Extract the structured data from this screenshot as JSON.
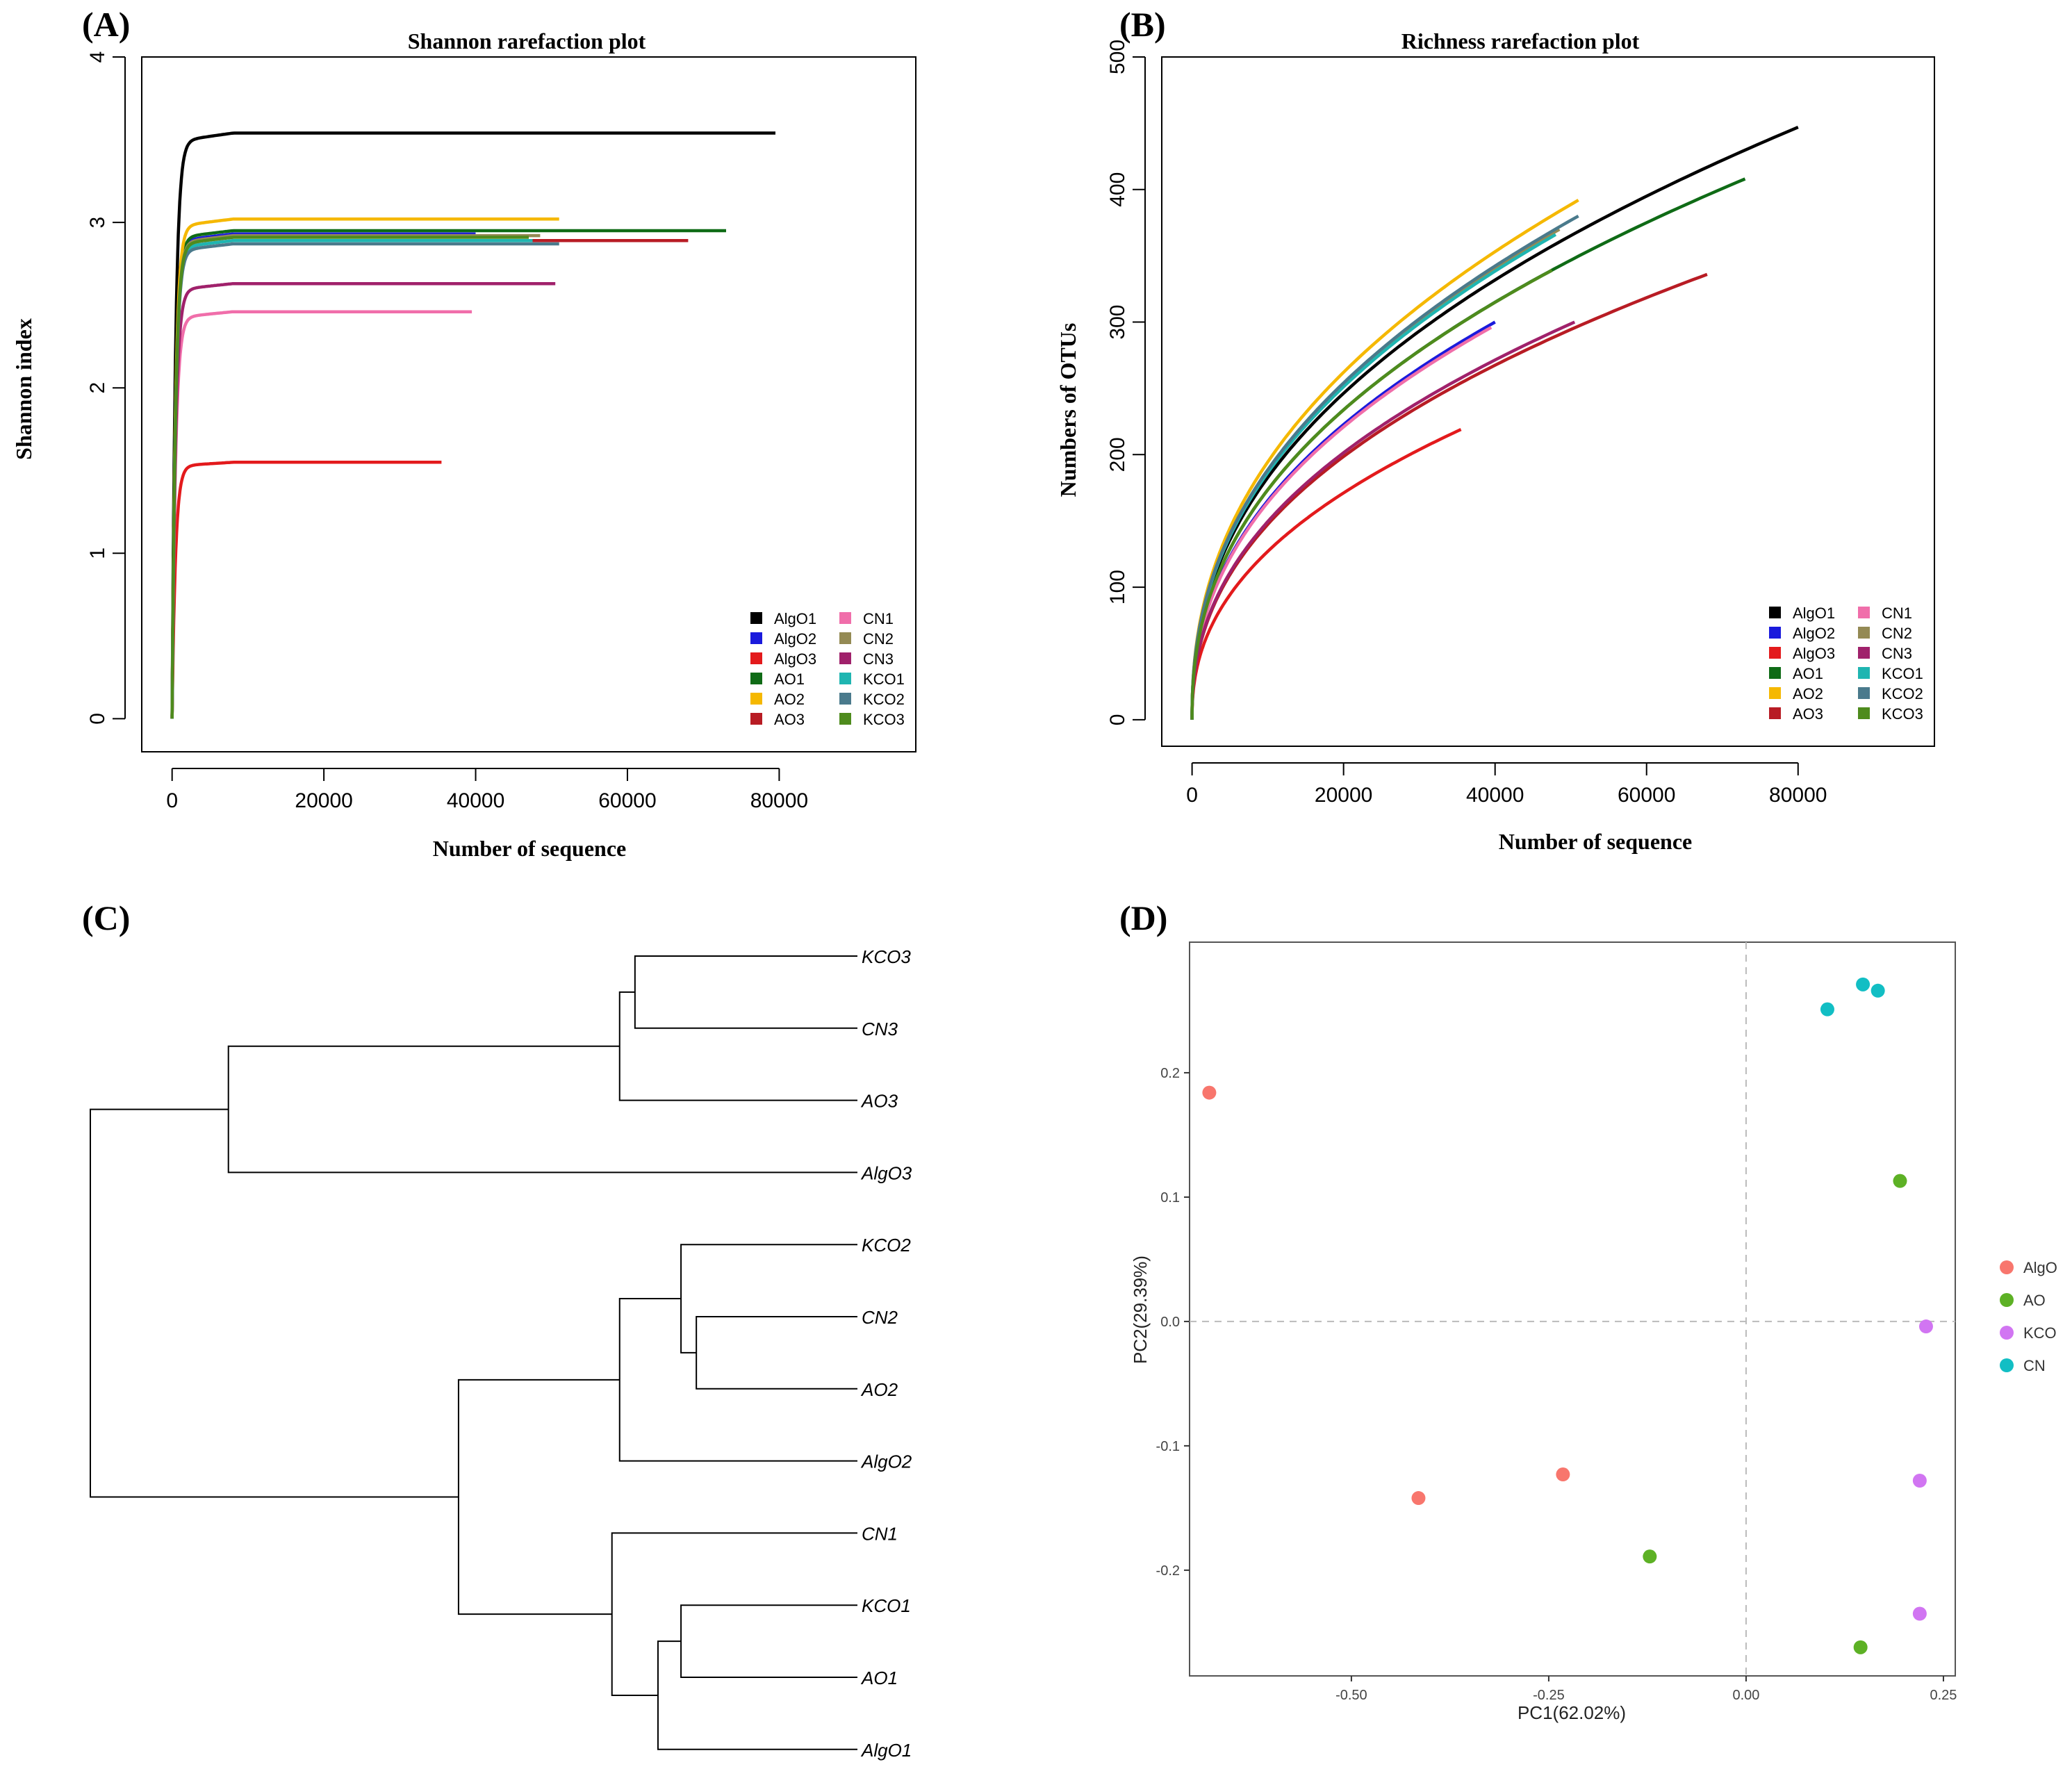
{
  "chart_data": [
    {
      "type": "line",
      "panel_label": "(A)",
      "title": "Shannon rarefaction plot",
      "xlabel": "Number of sequence",
      "ylabel": "Shannon index",
      "xlim": [
        -4000,
        98000
      ],
      "ylim": [
        -0.2,
        4.0
      ],
      "xticks": [
        0,
        20000,
        40000,
        60000,
        80000
      ],
      "xtick_labels": [
        "0",
        "20000",
        "40000",
        "60000",
        "80000"
      ],
      "yticks": [
        0,
        1,
        2,
        3,
        4
      ],
      "ytick_labels": [
        "0",
        "1",
        "2",
        "3",
        "4"
      ],
      "legend_position": "bottom-right",
      "series": [
        {
          "name": "AlgO1",
          "color": "#000000",
          "x_max": 79500,
          "plateau": 3.54
        },
        {
          "name": "AlgO2",
          "color": "#1a1adc",
          "x_max": 40000,
          "plateau": 2.93
        },
        {
          "name": "AlgO3",
          "color": "#e31a1c",
          "x_max": 35500,
          "plateau": 1.55
        },
        {
          "name": "AO1",
          "color": "#0f6b16",
          "x_max": 73000,
          "plateau": 2.95
        },
        {
          "name": "AO2",
          "color": "#f5b800",
          "x_max": 51000,
          "plateau": 3.02
        },
        {
          "name": "AO3",
          "color": "#b81c24",
          "x_max": 68000,
          "plateau": 2.89
        },
        {
          "name": "CN1",
          "color": "#f06eaa",
          "x_max": 39500,
          "plateau": 2.46
        },
        {
          "name": "CN2",
          "color": "#948a54",
          "x_max": 48500,
          "plateau": 2.92
        },
        {
          "name": "CN3",
          "color": "#a0216b",
          "x_max": 50500,
          "plateau": 2.63
        },
        {
          "name": "KCO1",
          "color": "#1fb5b1",
          "x_max": 47500,
          "plateau": 2.89
        },
        {
          "name": "KCO2",
          "color": "#4a7a8c",
          "x_max": 51000,
          "plateau": 2.87
        },
        {
          "name": "KCO3",
          "color": "#4e8b1d",
          "x_max": 47000,
          "plateau": 2.91
        }
      ]
    },
    {
      "type": "line",
      "panel_label": "(B)",
      "title": "Richness rarefaction plot",
      "xlabel": "Number of sequence",
      "ylabel": "Numbers  of  OTUs",
      "xlim": [
        -4000,
        98000
      ],
      "ylim": [
        -20,
        500
      ],
      "xticks": [
        0,
        20000,
        40000,
        60000,
        80000
      ],
      "xtick_labels": [
        "0",
        "20000",
        "40000",
        "60000",
        "80000"
      ],
      "yticks": [
        0,
        100,
        200,
        300,
        400,
        500
      ],
      "ytick_labels": [
        "0",
        "100",
        "200",
        "300",
        "400",
        "500"
      ],
      "legend_position": "bottom-right",
      "series": [
        {
          "name": "AlgO1",
          "color": "#000000",
          "x_max": 80000,
          "end_value": 447
        },
        {
          "name": "AlgO2",
          "color": "#1a1adc",
          "x_max": 40000,
          "end_value": 300
        },
        {
          "name": "AlgO3",
          "color": "#e31a1c",
          "x_max": 35500,
          "end_value": 219
        },
        {
          "name": "AO1",
          "color": "#0f6b16",
          "x_max": 73000,
          "end_value": 408
        },
        {
          "name": "AO2",
          "color": "#f5b800",
          "x_max": 51000,
          "end_value": 392
        },
        {
          "name": "AO3",
          "color": "#b81c24",
          "x_max": 68000,
          "end_value": 336
        },
        {
          "name": "CN1",
          "color": "#f06eaa",
          "x_max": 39500,
          "end_value": 296
        },
        {
          "name": "CN2",
          "color": "#948a54",
          "x_max": 48500,
          "end_value": 370
        },
        {
          "name": "CN3",
          "color": "#a0216b",
          "x_max": 50500,
          "end_value": 300
        },
        {
          "name": "KCO1",
          "color": "#1fb5b1",
          "x_max": 48000,
          "end_value": 366
        },
        {
          "name": "KCO2",
          "color": "#4a7a8c",
          "x_max": 51000,
          "end_value": 380
        },
        {
          "name": "KCO3",
          "color": "#4e8b1d",
          "x_max": 47500,
          "end_value": 339
        }
      ]
    },
    {
      "type": "dendrogram",
      "panel_label": "(C)",
      "leaves": [
        "KCO3",
        "CN3",
        "AO3",
        "AlgO3",
        "KCO2",
        "CN2",
        "AO2",
        "AlgO2",
        "CN1",
        "KCO1",
        "AO1",
        "AlgO1"
      ],
      "merge_order_note": "heights in arbitrary distance units (root = 1.0)",
      "merges": [
        {
          "id": "m1",
          "children": [
            "KCO3",
            "CN3"
          ],
          "height": 0.29
        },
        {
          "id": "m2",
          "children": [
            "m1",
            "AO3"
          ],
          "height": 0.31
        },
        {
          "id": "m3",
          "children": [
            "m2",
            "AlgO3"
          ],
          "height": 0.82
        },
        {
          "id": "m4",
          "children": [
            "CN2",
            "AO2"
          ],
          "height": 0.21
        },
        {
          "id": "m5",
          "children": [
            "KCO2",
            "m4"
          ],
          "height": 0.23
        },
        {
          "id": "m6",
          "children": [
            "m5",
            "AlgO2"
          ],
          "height": 0.31
        },
        {
          "id": "m7",
          "children": [
            "KCO1",
            "AO1"
          ],
          "height": 0.23
        },
        {
          "id": "m8",
          "children": [
            "m7",
            "AlgO1"
          ],
          "height": 0.26
        },
        {
          "id": "m9",
          "children": [
            "CN1",
            "m8"
          ],
          "height": 0.32
        },
        {
          "id": "m10",
          "children": [
            "m6",
            "m9"
          ],
          "height": 0.52
        },
        {
          "id": "m11",
          "children": [
            "m3",
            "m10"
          ],
          "height": 1.0
        }
      ]
    },
    {
      "type": "scatter",
      "panel_label": "(D)",
      "xlabel": "PC1(62.02%)",
      "ylabel": "PC2(29.39%)",
      "xlim": [
        -0.705,
        0.265
      ],
      "ylim": [
        -0.285,
        0.305
      ],
      "xticks": [
        -0.5,
        -0.25,
        0.0,
        0.25
      ],
      "xtick_labels": [
        "-0.50",
        "-0.25",
        "0.00",
        "0.25"
      ],
      "yticks": [
        0.2,
        0.1,
        0.0,
        -0.1,
        -0.2
      ],
      "ytick_labels": [
        "0.2",
        "0.1",
        "0.0",
        "-0.1",
        "-0.2"
      ],
      "legend_position": "right",
      "groups": [
        {
          "name": "AlgO",
          "color": "#f8766d",
          "points": [
            [
              -0.68,
              0.184
            ],
            [
              -0.415,
              -0.142
            ],
            [
              -0.232,
              -0.123
            ]
          ]
        },
        {
          "name": "AO",
          "color": "#5db125",
          "points": [
            [
              0.195,
              0.113
            ],
            [
              -0.122,
              -0.189
            ],
            [
              0.145,
              -0.262
            ]
          ]
        },
        {
          "name": "KCO",
          "color": "#d175f2",
          "points": [
            [
              0.228,
              -0.004
            ],
            [
              0.22,
              -0.128
            ],
            [
              0.22,
              -0.235
            ]
          ]
        },
        {
          "name": "CN",
          "color": "#12bec4",
          "points": [
            [
              0.103,
              0.251
            ],
            [
              0.148,
              0.271
            ],
            [
              0.167,
              0.266
            ]
          ]
        }
      ]
    }
  ]
}
